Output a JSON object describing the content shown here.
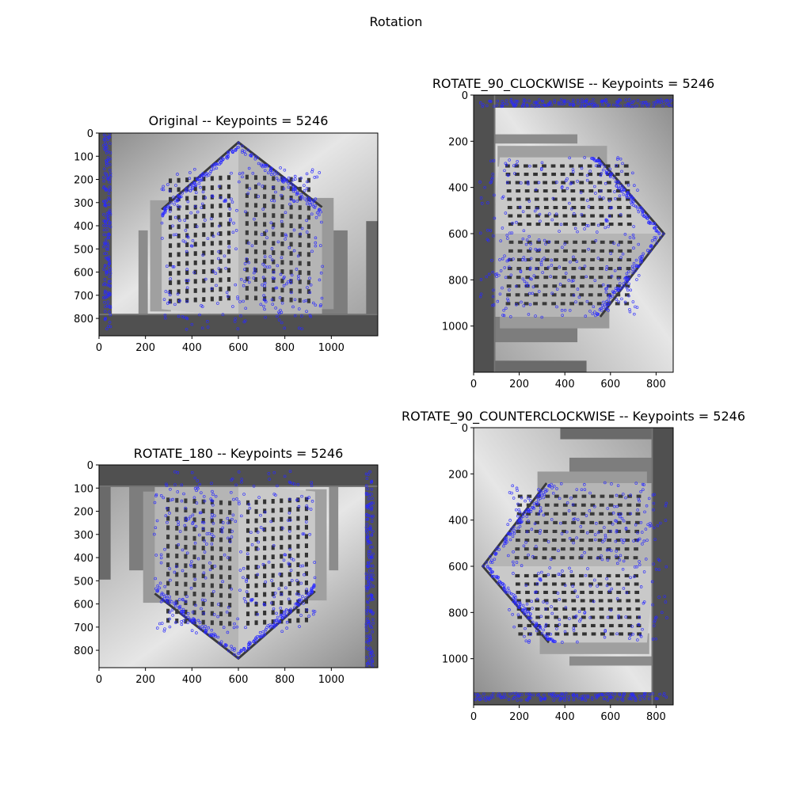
{
  "figure": {
    "title": "Rotation"
  },
  "palette": {
    "keypoint": "#2a2aff",
    "sky_light": "#e6e6e6",
    "sky_dark": "#8a8a8a",
    "building": "#b5b5b5",
    "frame": "#3a3a3a"
  },
  "panels": [
    {
      "key": "original",
      "title": "Original -- Keypoints = 5246",
      "rotation": 0,
      "width": 1200,
      "height": 875,
      "xticks": [
        "0",
        "200",
        "400",
        "600",
        "800",
        "1000"
      ],
      "yticks": [
        "0",
        "100",
        "200",
        "300",
        "400",
        "500",
        "600",
        "700",
        "800"
      ]
    },
    {
      "key": "cw",
      "title": "ROTATE_90_CLOCKWISE -- Keypoints = 5246",
      "rotation": 90,
      "width": 875,
      "height": 1200,
      "xticks": [
        "0",
        "200",
        "400",
        "600",
        "800"
      ],
      "yticks": [
        "0",
        "200",
        "400",
        "600",
        "800",
        "1000"
      ]
    },
    {
      "key": "r180",
      "title": "ROTATE_180 -- Keypoints = 5246",
      "rotation": 180,
      "width": 1200,
      "height": 875,
      "xticks": [
        "0",
        "200",
        "400",
        "600",
        "800",
        "1000"
      ],
      "yticks": [
        "0",
        "100",
        "200",
        "300",
        "400",
        "500",
        "600",
        "700",
        "800"
      ]
    },
    {
      "key": "ccw",
      "title": "ROTATE_90_COUNTERCLOCKWISE -- Keypoints = 5246",
      "rotation": 270,
      "width": 875,
      "height": 1200,
      "xticks": [
        "0",
        "200",
        "400",
        "600",
        "800"
      ],
      "yticks": [
        "0",
        "200",
        "400",
        "600",
        "800",
        "1000"
      ]
    }
  ]
}
